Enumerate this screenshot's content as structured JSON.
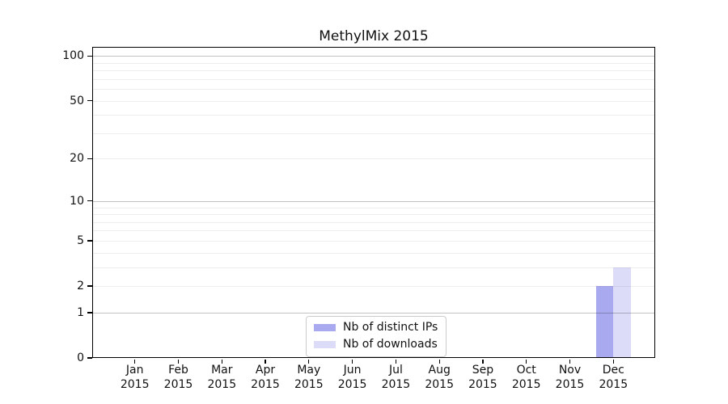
{
  "title": "MethylMix 2015",
  "colors": {
    "background": "#ffffff",
    "axis": "#000000",
    "text": "#111111",
    "grid_major": "#c2c2c2",
    "grid_minor": "#ededed",
    "legend_border": "#cccccc",
    "bar_distinct_ips": "#a9a9f0",
    "bar_downloads": "#dcdcf8"
  },
  "chart_data": {
    "type": "bar",
    "title": "MethylMix 2015",
    "months": [
      "Jan",
      "Feb",
      "Mar",
      "Apr",
      "May",
      "Jun",
      "Jul",
      "Aug",
      "Sep",
      "Oct",
      "Nov",
      "Dec"
    ],
    "year_label": "2015",
    "categories": [
      "Jan 2015",
      "Feb 2015",
      "Mar 2015",
      "Apr 2015",
      "May 2015",
      "Jun 2015",
      "Jul 2015",
      "Aug 2015",
      "Sep 2015",
      "Oct 2015",
      "Nov 2015",
      "Dec 2015"
    ],
    "series": [
      {
        "name": "Nb of distinct IPs",
        "color": "#a9a9f0",
        "values": [
          0,
          0,
          0,
          0,
          0,
          0,
          0,
          0,
          0,
          0,
          0,
          2
        ]
      },
      {
        "name": "Nb of downloads",
        "color": "#dcdcf8",
        "values": [
          0,
          0,
          0,
          0,
          0,
          0,
          0,
          0,
          0,
          0,
          0,
          3
        ]
      }
    ],
    "xlabel": "",
    "ylabel": "",
    "y_scale": "log10(1+x)",
    "ylim": [
      0,
      115
    ],
    "y_ticks": [
      0,
      1,
      2,
      5,
      10,
      20,
      50,
      100
    ],
    "y_tick_labels": [
      "0",
      "1",
      "2",
      "5",
      "10",
      "20",
      "50",
      "100"
    ],
    "y_gridlines_major": [
      1,
      10,
      100
    ],
    "y_gridlines_minor": [
      2,
      3,
      4,
      5,
      6,
      7,
      8,
      9,
      20,
      30,
      40,
      50,
      60,
      70,
      80,
      90
    ],
    "grid": true,
    "legend_position": "inside-bottom-center"
  }
}
